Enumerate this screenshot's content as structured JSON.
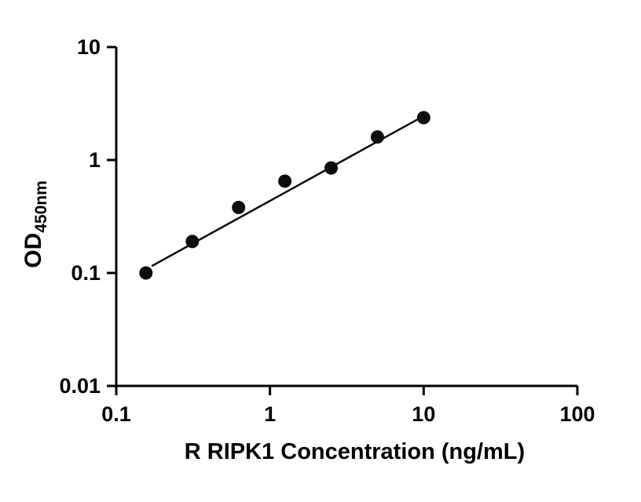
{
  "figure": {
    "background_color": "#ffffff",
    "axis_color": "#000000",
    "marker_color": "#0d0d0d",
    "line_color": "#0d0d0d"
  },
  "chart_data": {
    "type": "scatter",
    "title": "",
    "xlabel": "R RIPK1 Concentration (ng/mL)",
    "ylabel": "OD",
    "ylabel_subscript": "450nm",
    "xscale": "log",
    "yscale": "log",
    "xlim": [
      0.1,
      100
    ],
    "ylim": [
      0.01,
      10
    ],
    "x_ticks": [
      0.1,
      1,
      10,
      100
    ],
    "x_tick_labels": [
      "0.1",
      "1",
      "10",
      "100"
    ],
    "y_ticks": [
      0.01,
      0.1,
      1,
      10
    ],
    "y_tick_labels": [
      "0.01",
      "0.1",
      "1",
      "10"
    ],
    "grid": false,
    "legend": "none",
    "series": [
      {
        "name": "standard-curve-points",
        "x": [
          0.156,
          0.3125,
          0.625,
          1.25,
          2.5,
          5,
          10
        ],
        "y": [
          0.1,
          0.19,
          0.38,
          0.65,
          0.85,
          1.6,
          2.37
        ]
      }
    ],
    "trend_line": {
      "x": [
        0.17,
        10
      ],
      "y": [
        0.115,
        2.45
      ]
    }
  }
}
